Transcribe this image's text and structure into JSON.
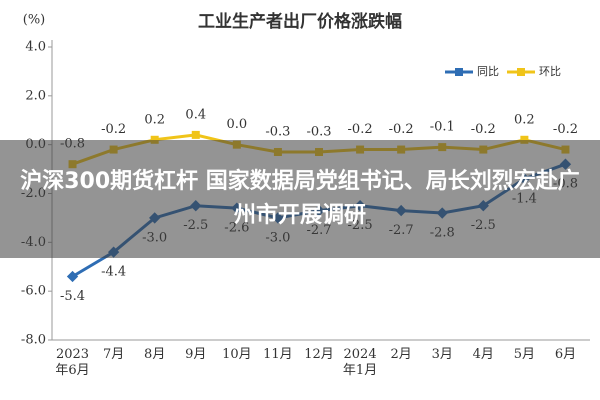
{
  "chart_data": {
    "type": "line",
    "title": "工业生产者出厂价格涨跌幅",
    "y_label": "(%)",
    "categories": [
      "2023年6月",
      "7月",
      "8月",
      "9月",
      "10月",
      "11月",
      "12月",
      "2024年1月",
      "2月",
      "3月",
      "4月",
      "5月",
      "6月"
    ],
    "series": [
      {
        "name": "同比",
        "color": "#2e6db4",
        "values": [
          -5.4,
          -4.4,
          -3.0,
          -2.5,
          -2.6,
          -3.0,
          -2.7,
          -2.5,
          -2.7,
          -2.8,
          -2.5,
          -1.4,
          -0.8
        ],
        "value_labels": [
          "-5.4",
          "-4.4",
          "-3.0",
          "-2.5",
          "-2.6",
          "-3.0",
          "-2.7",
          "-2.5",
          "-2.7",
          "-2.8",
          "-2.5",
          "-1.4",
          "-0.8"
        ]
      },
      {
        "name": "环比",
        "color": "#f0c419",
        "values": [
          -0.8,
          -0.2,
          0.2,
          0.4,
          0.0,
          -0.3,
          -0.3,
          -0.2,
          -0.2,
          -0.1,
          -0.2,
          0.2,
          -0.2
        ],
        "value_labels": [
          "-0.8",
          "-0.2",
          "0.2",
          "0.4",
          "0.0",
          "-0.3",
          "-0.3",
          "-0.2",
          "-0.2",
          "-0.1",
          "-0.2",
          "0.2",
          "-0.2"
        ]
      }
    ],
    "ylim": [
      -8,
      4
    ],
    "yticks": [
      {
        "value": -8,
        "label": "-8.0"
      },
      {
        "value": -6,
        "label": "-6.0"
      },
      {
        "value": -4,
        "label": "-4.0"
      },
      {
        "value": -2,
        "label": "-2.0"
      },
      {
        "value": 0,
        "label": "0.0"
      },
      {
        "value": 2,
        "label": "2.0"
      },
      {
        "value": 4,
        "label": "4.0"
      }
    ],
    "legend": "top-right"
  },
  "headline": "沪深300期货杠杆 国家数据局党组书记、局长刘烈宏赴广州市开展调研"
}
